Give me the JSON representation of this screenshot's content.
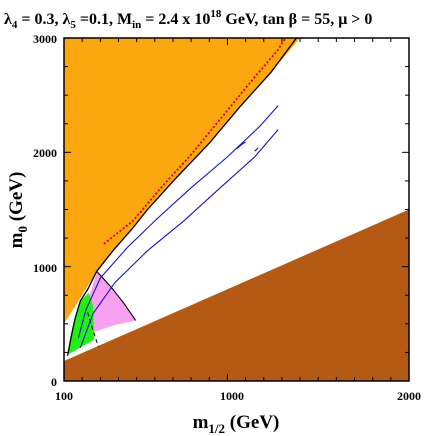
{
  "chart_data": {
    "type": "contour",
    "title": {
      "lambda4_symbol": "λ",
      "lambda4_sub": "4",
      "lambda4_value": " = 0.3, ",
      "lambda5_symbol": "λ",
      "lambda5_sub": "5",
      "lambda5_value": " =0.1, M",
      "min_sub": "in",
      "min_value": " = 2.4 x 10",
      "min_exp": "18",
      "min_unit": " GeV, tan ",
      "beta_symbol": "β",
      "tan_value": " = 55,  ",
      "mu_symbol": "μ",
      "mu_value": " > 0"
    },
    "xlabel": {
      "main": "m",
      "sub": "1/2",
      "unit": " (GeV)"
    },
    "ylabel": {
      "main": "m",
      "sub": "0",
      "unit": " (GeV)"
    },
    "x_axis": {
      "label_min": 100,
      "label_max": 2000,
      "range": [
        100,
        2000
      ]
    },
    "y_axis": {
      "range": [
        0,
        3000
      ],
      "ticks": [
        0,
        1000,
        2000,
        3000
      ]
    },
    "x_tick_labels": [
      "100",
      "1000",
      "2000"
    ],
    "y_tick_labels": [
      "0",
      "1000",
      "2000",
      "3000"
    ],
    "colors": {
      "stau_lsp_region": "#fca70f",
      "no_ewsb_region": "#b55a15",
      "g_minus_2_region": "#f7a0ef",
      "bsgamma_region": "#22ef16",
      "relic_density_strip": "#1515c8",
      "higgs_contour": "#d40000",
      "boundary_lines": "#000000"
    },
    "regions": {
      "upper_left": [
        [
          100,
          3000
        ],
        [
          100,
          500
        ],
        [
          180,
          700
        ],
        [
          250,
          880
        ],
        [
          400,
          1200
        ],
        [
          560,
          1500
        ],
        [
          720,
          1780
        ],
        [
          900,
          2080
        ],
        [
          1070,
          2400
        ],
        [
          1240,
          2700
        ],
        [
          1400,
          3000
        ]
      ],
      "lower_right": [
        [
          100,
          0
        ],
        [
          2000,
          0
        ],
        [
          2000,
          1500
        ],
        [
          100,
          175
        ]
      ],
      "pink_wedge": [
        [
          280,
          960
        ],
        [
          360,
          820
        ],
        [
          430,
          680
        ],
        [
          495,
          530
        ],
        [
          380,
          490
        ],
        [
          250,
          420
        ],
        [
          170,
          420
        ],
        [
          220,
          680
        ],
        [
          250,
          790
        ]
      ],
      "green_blob": [
        [
          118,
          200
        ],
        [
          125,
          300
        ],
        [
          140,
          430
        ],
        [
          160,
          560
        ],
        [
          190,
          700
        ],
        [
          235,
          770
        ],
        [
          260,
          660
        ],
        [
          265,
          360
        ],
        [
          120,
          230
        ]
      ],
      "black_boundary": [
        [
          120,
          220
        ],
        [
          135,
          350
        ],
        [
          160,
          540
        ],
        [
          190,
          700
        ],
        [
          230,
          800
        ],
        [
          280,
          960
        ],
        [
          370,
          1140
        ],
        [
          480,
          1340
        ],
        [
          560,
          1500
        ],
        [
          720,
          1780
        ],
        [
          900,
          2080
        ],
        [
          1070,
          2400
        ],
        [
          1240,
          2700
        ],
        [
          1380,
          3000
        ]
      ],
      "red_dotted": [
        [
          320,
          1200
        ],
        [
          480,
          1400
        ],
        [
          640,
          1700
        ],
        [
          800,
          1980
        ],
        [
          960,
          2290
        ],
        [
          1120,
          2600
        ],
        [
          1280,
          2900
        ],
        [
          1320,
          3000
        ]
      ],
      "pink_boundary": [
        [
          280,
          960
        ],
        [
          360,
          820
        ],
        [
          430,
          680
        ],
        [
          495,
          530
        ]
      ],
      "black_dashed": [
        [
          230,
          600
        ],
        [
          260,
          440
        ],
        [
          290,
          300
        ]
      ],
      "blue_strip_outer": [
        [
          180,
          380
        ],
        [
          220,
          620
        ],
        [
          300,
          900
        ],
        [
          450,
          1170
        ],
        [
          620,
          1430
        ],
        [
          800,
          1690
        ],
        [
          1000,
          1960
        ],
        [
          1180,
          2230
        ],
        [
          1280,
          2410
        ]
      ],
      "blue_strip_inner": [
        [
          190,
          290
        ],
        [
          260,
          590
        ],
        [
          380,
          860
        ],
        [
          560,
          1140
        ],
        [
          760,
          1400
        ],
        [
          960,
          1690
        ],
        [
          1150,
          1960
        ],
        [
          1280,
          2200
        ]
      ],
      "blue_islands": [
        [
          [
            1050,
            2030
          ],
          [
            1080,
            2070
          ],
          [
            1100,
            2090
          ]
        ],
        [
          [
            1150,
            2010
          ],
          [
            1170,
            2040
          ]
        ]
      ]
    }
  }
}
